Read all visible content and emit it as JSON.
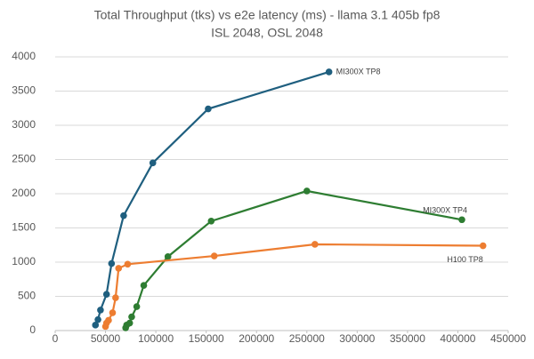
{
  "chart_data": {
    "type": "line",
    "title": "Total Throughput (tks) vs e2e latency (ms) - llama 3.1 405b fp8",
    "subtitle": "ISL 2048, OSL 2048",
    "xlim": [
      0,
      450000
    ],
    "xticks": [
      0,
      50000,
      100000,
      150000,
      200000,
      250000,
      300000,
      350000,
      400000,
      450000
    ],
    "ylim": [
      0,
      4000
    ],
    "yticks": [
      0,
      500,
      1000,
      1500,
      2000,
      2500,
      3000,
      3500,
      4000
    ],
    "grid": true,
    "series": [
      {
        "name": "MI300X TP8",
        "color": "#1f5f7f",
        "x": [
          40000,
          42500,
          45000,
          51000,
          56000,
          68000,
          97000,
          152000,
          272000
        ],
        "values": [
          80,
          160,
          300,
          530,
          980,
          1680,
          2450,
          3240,
          3780
        ]
      },
      {
        "name": "MI300X TP4",
        "color": "#2e7d32",
        "x": [
          70000,
          71000,
          74000,
          76000,
          81000,
          88000,
          112000,
          155000,
          250000,
          404000
        ],
        "values": [
          40,
          80,
          110,
          200,
          350,
          660,
          1080,
          1600,
          2040,
          1620
        ]
      },
      {
        "name": "H100 TP8",
        "color": "#ed7d31",
        "x": [
          50000,
          51000,
          53000,
          57000,
          60000,
          63000,
          72000,
          158000,
          258000,
          425000
        ],
        "values": [
          60,
          110,
          150,
          260,
          480,
          910,
          970,
          1090,
          1260,
          1240
        ]
      }
    ]
  }
}
